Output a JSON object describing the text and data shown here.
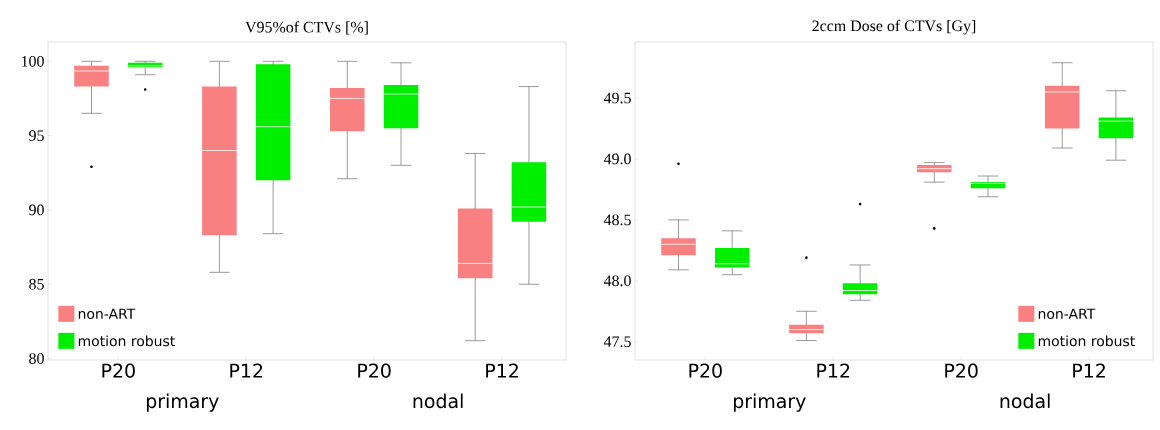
{
  "chart_data": [
    {
      "type": "box",
      "title": "V95%of CTVs [%]",
      "categories": [
        "P20",
        "P12",
        "P20",
        "P12"
      ],
      "ylim": [
        79.9,
        101.3
      ],
      "yticks": [
        80,
        85,
        90,
        95,
        100
      ],
      "legend": "bottom left",
      "annotations": [
        "primary",
        "nodal"
      ],
      "series": [
        {
          "name": "non-ART",
          "color": "#f88080",
          "boxes": [
            {
              "low": 96.5,
              "q1": 98.3,
              "median": 99.35,
              "q3": 99.7,
              "high": 100,
              "outliers": [
                92.9
              ]
            },
            {
              "low": 85.8,
              "q1": 88.3,
              "median": 94.0,
              "q3": 98.3,
              "high": 100
            },
            {
              "low": 92.1,
              "q1": 95.3,
              "median": 97.5,
              "q3": 98.2,
              "high": 100
            },
            {
              "low": 81.2,
              "q1": 85.4,
              "median": 86.4,
              "q3": 90.1,
              "high": 93.8
            }
          ]
        },
        {
          "name": "motion robust",
          "color": "#00ee00",
          "boxes": [
            {
              "low": 99.1,
              "q1": 99.6,
              "median": 99.7,
              "q3": 99.9,
              "high": 100,
              "outliers": [
                98.1
              ]
            },
            {
              "low": 88.4,
              "q1": 92.0,
              "median": 95.6,
              "q3": 99.8,
              "high": 100
            },
            {
              "low": 93.0,
              "q1": 95.5,
              "median": 97.8,
              "q3": 98.4,
              "high": 99.9
            },
            {
              "low": 85.0,
              "q1": 89.2,
              "median": 90.2,
              "q3": 93.2,
              "high": 98.3
            }
          ]
        }
      ]
    },
    {
      "type": "box",
      "title": "2ccm Dose of CTVs [Gy]",
      "categories": [
        "P20",
        "P12",
        "P20",
        "P12"
      ],
      "ylim": [
        47.35,
        49.96
      ],
      "yticks": [
        47.5,
        {
          "value": 48,
          "label": "48.0"
        },
        48.5,
        {
          "value": 49,
          "label": "49.0"
        },
        49.5
      ],
      "legend": "bottom right",
      "annotations": [
        "primary",
        "nodal"
      ],
      "series": [
        {
          "name": "non-ART",
          "color": "#f88080",
          "boxes": [
            {
              "low": 48.09,
              "q1": 48.21,
              "median": 48.3,
              "q3": 48.35,
              "high": 48.5,
              "outliers": [
                48.96
              ]
            },
            {
              "low": 47.51,
              "q1": 47.57,
              "median": 47.6,
              "q3": 47.64,
              "high": 47.75,
              "outliers": [
                48.19
              ]
            },
            {
              "low": 48.81,
              "q1": 48.89,
              "median": 48.92,
              "q3": 48.95,
              "high": 48.97,
              "outliers": [
                48.43
              ]
            },
            {
              "low": 49.09,
              "q1": 49.25,
              "median": 49.55,
              "q3": 49.6,
              "high": 49.79
            }
          ]
        },
        {
          "name": "motion robust",
          "color": "#00ee00",
          "boxes": [
            {
              "low": 48.05,
              "q1": 48.11,
              "median": 48.14,
              "q3": 48.27,
              "high": 48.41
            },
            {
              "low": 47.84,
              "q1": 47.89,
              "median": 47.92,
              "q3": 47.98,
              "high": 48.13,
              "outliers": [
                48.63
              ]
            },
            {
              "low": 48.69,
              "q1": 48.76,
              "median": 48.8,
              "q3": 48.81,
              "high": 48.86
            },
            {
              "low": 48.99,
              "q1": 49.17,
              "median": 49.31,
              "q3": 49.34,
              "high": 49.56
            }
          ]
        }
      ]
    }
  ]
}
